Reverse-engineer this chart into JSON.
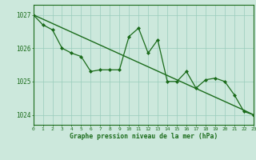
{
  "title": "Graphe pression niveau de la mer (hPa)",
  "x_hours": [
    0,
    1,
    2,
    3,
    4,
    5,
    6,
    7,
    8,
    9,
    10,
    11,
    12,
    13,
    14,
    15,
    16,
    17,
    18,
    19,
    20,
    21,
    22,
    23
  ],
  "y_measured": [
    1027.0,
    1026.7,
    1026.55,
    1026.0,
    1025.85,
    1025.75,
    1025.3,
    1025.35,
    1025.35,
    1025.35,
    1026.35,
    1026.6,
    1025.85,
    1026.25,
    1025.0,
    1025.0,
    1025.3,
    1024.8,
    1025.05,
    1025.1,
    1025.0,
    1024.6,
    1024.1,
    1024.0
  ],
  "y_trend": [
    1027.0,
    1026.87,
    1026.74,
    1026.61,
    1026.48,
    1026.35,
    1026.22,
    1026.09,
    1025.96,
    1025.83,
    1025.7,
    1025.57,
    1025.44,
    1025.31,
    1025.18,
    1025.05,
    1024.92,
    1024.79,
    1024.66,
    1024.53,
    1024.4,
    1024.27,
    1024.14,
    1024.0
  ],
  "line_color": "#1a6b1a",
  "marker_color": "#1a6b1a",
  "bg_color": "#cce8dc",
  "grid_color": "#99ccbb",
  "axis_color": "#1a6b1a",
  "tick_color": "#1a6b1a",
  "label_color": "#1a6b1a",
  "ylim": [
    1023.7,
    1027.3
  ],
  "yticks": [
    1024,
    1025,
    1026,
    1027
  ],
  "xticks": [
    0,
    1,
    2,
    3,
    4,
    5,
    6,
    7,
    8,
    9,
    10,
    11,
    12,
    13,
    14,
    15,
    16,
    17,
    18,
    19,
    20,
    21,
    22,
    23
  ]
}
